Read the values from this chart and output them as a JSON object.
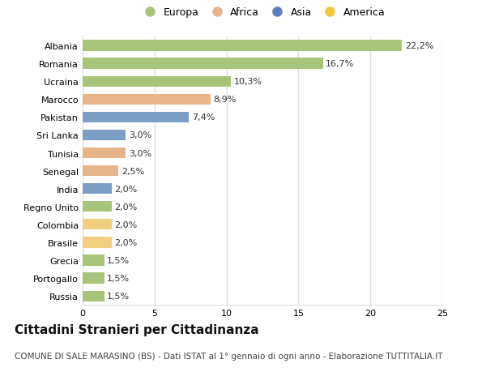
{
  "categories": [
    "Albania",
    "Romania",
    "Ucraina",
    "Marocco",
    "Pakistan",
    "Sri Lanka",
    "Tunisia",
    "Senegal",
    "India",
    "Regno Unito",
    "Colombia",
    "Brasile",
    "Grecia",
    "Portogallo",
    "Russia"
  ],
  "values": [
    22.2,
    16.7,
    10.3,
    8.9,
    7.4,
    3.0,
    3.0,
    2.5,
    2.0,
    2.0,
    2.0,
    2.0,
    1.5,
    1.5,
    1.5
  ],
  "labels": [
    "22,2%",
    "16,7%",
    "10,3%",
    "8,9%",
    "7,4%",
    "3,0%",
    "3,0%",
    "2,5%",
    "2,0%",
    "2,0%",
    "2,0%",
    "2,0%",
    "1,5%",
    "1,5%",
    "1,5%"
  ],
  "continents": [
    "Europa",
    "Europa",
    "Europa",
    "Africa",
    "Asia",
    "Asia",
    "Africa",
    "Africa",
    "Asia",
    "Europa",
    "America",
    "America",
    "Europa",
    "Europa",
    "Europa"
  ],
  "colors": {
    "Europa": "#a8c47a",
    "Africa": "#e8b48a",
    "Asia": "#7b9ec7",
    "America": "#f0d080"
  },
  "legend_order": [
    "Europa",
    "Africa",
    "Asia",
    "America"
  ],
  "legend_marker_colors": {
    "Europa": "#a8c47a",
    "Africa": "#e8b48a",
    "Asia": "#5b7ebf",
    "America": "#f0c840"
  },
  "xlim": [
    0,
    25
  ],
  "xticks": [
    0,
    5,
    10,
    15,
    20,
    25
  ],
  "background_color": "#ffffff",
  "grid_color": "#e0e0e0",
  "title": "Cittadini Stranieri per Cittadinanza",
  "subtitle": "COMUNE DI SALE MARASINO (BS) - Dati ISTAT al 1° gennaio di ogni anno - Elaborazione TUTTITALIA.IT",
  "title_fontsize": 11,
  "subtitle_fontsize": 7.5,
  "bar_height": 0.6,
  "label_fontsize": 8,
  "tick_fontsize": 8,
  "legend_fontsize": 9
}
